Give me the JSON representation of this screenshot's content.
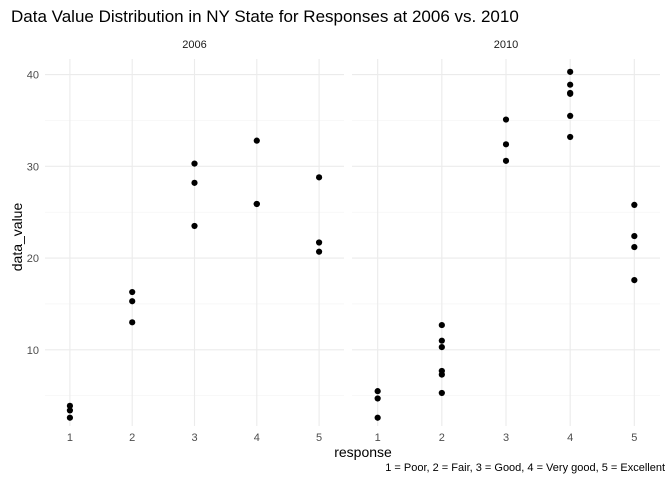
{
  "chart_data": {
    "type": "scatter",
    "title": "Data Value Distribution in NY State for Responses at 2006 vs. 2010",
    "xlabel": "response",
    "ylabel": "data_value",
    "caption": "1 = Poor, 2 = Fair, 3 = Good, 4 = Very good, 5 = Excellent",
    "xlim": [
      0.6,
      5.4
    ],
    "ylim": [
      1.7,
      41.7
    ],
    "x_ticks": [
      1,
      2,
      3,
      4,
      5
    ],
    "y_ticks": [
      10,
      20,
      30,
      40
    ],
    "grid": true,
    "facets": [
      {
        "label": "2006",
        "points": [
          {
            "x": 1,
            "y": 2.6
          },
          {
            "x": 1,
            "y": 3.4
          },
          {
            "x": 1,
            "y": 3.9
          },
          {
            "x": 2,
            "y": 13.0
          },
          {
            "x": 2,
            "y": 15.3
          },
          {
            "x": 2,
            "y": 16.3
          },
          {
            "x": 3,
            "y": 23.5
          },
          {
            "x": 3,
            "y": 28.2
          },
          {
            "x": 3,
            "y": 30.3
          },
          {
            "x": 4,
            "y": 25.9
          },
          {
            "x": 4,
            "y": 25.9
          },
          {
            "x": 4,
            "y": 32.8
          },
          {
            "x": 5,
            "y": 20.7
          },
          {
            "x": 5,
            "y": 21.7
          },
          {
            "x": 5,
            "y": 28.8
          }
        ]
      },
      {
        "label": "2010",
        "points": [
          {
            "x": 1,
            "y": 2.6
          },
          {
            "x": 1,
            "y": 4.7
          },
          {
            "x": 1,
            "y": 5.5
          },
          {
            "x": 2,
            "y": 5.3
          },
          {
            "x": 2,
            "y": 7.3
          },
          {
            "x": 2,
            "y": 7.7
          },
          {
            "x": 2,
            "y": 10.3
          },
          {
            "x": 2,
            "y": 11.0
          },
          {
            "x": 2,
            "y": 12.7
          },
          {
            "x": 3,
            "y": 30.6
          },
          {
            "x": 3,
            "y": 32.4
          },
          {
            "x": 3,
            "y": 35.1
          },
          {
            "x": 4,
            "y": 33.2
          },
          {
            "x": 4,
            "y": 35.5
          },
          {
            "x": 4,
            "y": 37.9
          },
          {
            "x": 4,
            "y": 38.0
          },
          {
            "x": 4,
            "y": 38.9
          },
          {
            "x": 4,
            "y": 40.3
          },
          {
            "x": 5,
            "y": 17.6
          },
          {
            "x": 5,
            "y": 21.2
          },
          {
            "x": 5,
            "y": 22.4
          },
          {
            "x": 5,
            "y": 25.8
          }
        ]
      }
    ]
  }
}
